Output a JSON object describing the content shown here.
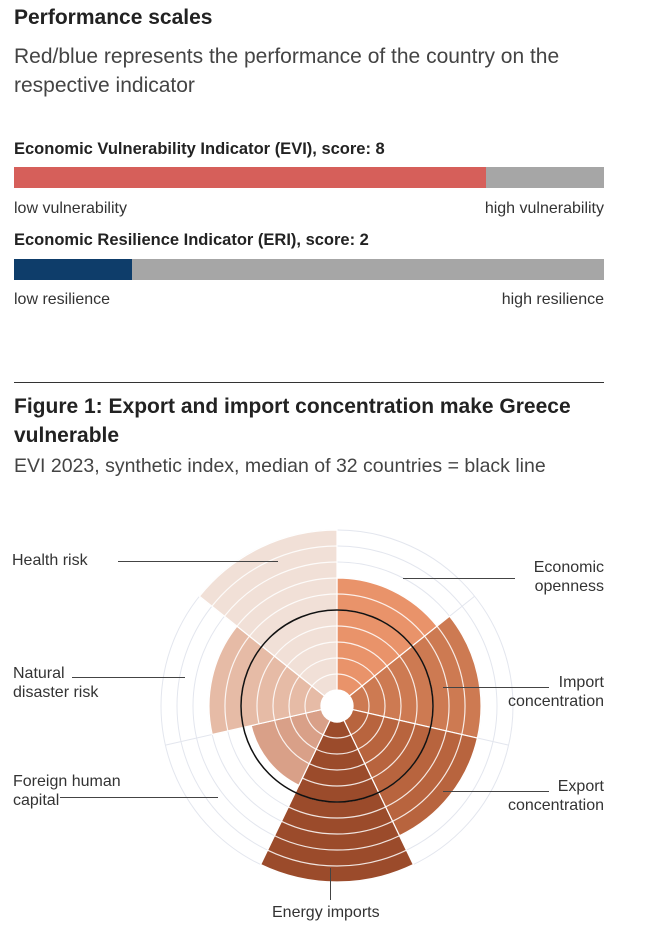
{
  "header": {
    "title": "Performance scales",
    "subtitle": "Red/blue represents the performance of the country on the respective indicator"
  },
  "evi": {
    "label": "Economic Vulnerability Indicator (EVI), score: 8",
    "score_fraction": 0.8,
    "low": "low vulnerability",
    "high": "high vulnerability",
    "color": "#d65f5a"
  },
  "eri": {
    "label": "Economic Resilience Indicator (ERI), score: 2",
    "score_fraction": 0.2,
    "low": "low resilience",
    "high": "high resilience",
    "color": "#0e3d6a"
  },
  "figure": {
    "title": "Figure 1: Export and import concentration make Greece vulnerable",
    "subtitle": "EVI 2023, synthetic index, median of 32 countries = black line"
  },
  "chart_data": {
    "type": "polar-area",
    "scale_max": 10,
    "median": 5,
    "categories": [
      "Economic openness",
      "Import concentration",
      "Export concentration",
      "Energy imports",
      "Foreign human capital",
      "Natural disaster risk",
      "Health risk"
    ],
    "values": [
      7,
      8,
      8,
      10,
      4.5,
      7,
      10
    ],
    "colors": [
      "#e9936a",
      "#cd7a52",
      "#b8643e",
      "#9b4b2b",
      "#d9a088",
      "#e6bba6",
      "#f1e0d7"
    ],
    "label_lines": [
      [
        "Economic",
        "openness"
      ],
      [
        "Import",
        "concentration"
      ],
      [
        "Export",
        "concentration"
      ],
      [
        "Energy imports"
      ],
      [
        "Foreign human",
        "capital"
      ],
      [
        "Natural",
        "disaster risk"
      ],
      [
        "Health risk"
      ]
    ]
  }
}
